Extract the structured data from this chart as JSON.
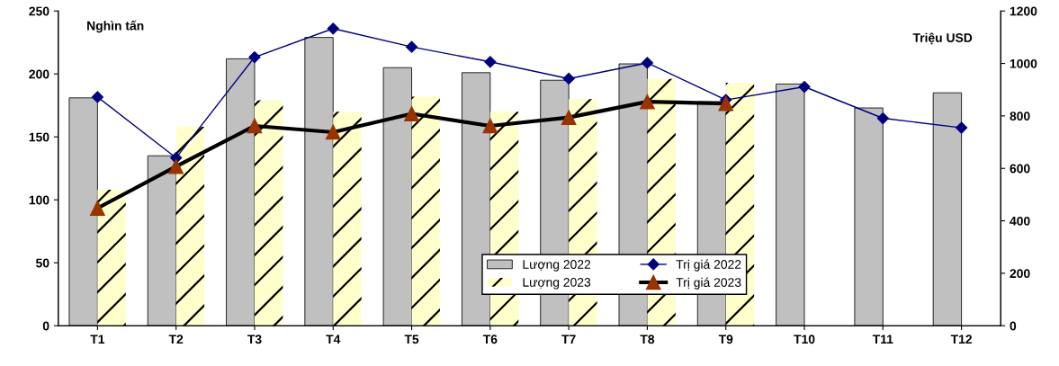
{
  "chart_data": {
    "type": "bar",
    "ylabel": "Nghìn tấn",
    "y2label": "Triệu USD",
    "categories": [
      "T1",
      "T2",
      "T3",
      "T4",
      "T5",
      "T6",
      "T7",
      "T8",
      "T9",
      "T10",
      "T11",
      "T12"
    ],
    "series": [
      {
        "name": "Lượng 2022",
        "color": "#c0c0c0",
        "values": [
          181,
          135,
          212,
          229,
          205,
          201,
          195,
          208,
          178,
          192,
          173,
          185
        ]
      },
      {
        "name": "Lượng 2023",
        "color": "#ffffcc",
        "values": [
          108,
          158,
          179,
          170,
          182,
          170,
          180,
          196,
          193,
          null,
          null,
          null
        ]
      },
      {
        "name": "Trị giá 2022",
        "type": "line",
        "axis": "y2",
        "color": "#000080",
        "marker": "diamond",
        "values": [
          872,
          640,
          1024,
          1133,
          1063,
          1006,
          942,
          1002,
          861,
          911,
          791,
          755
        ]
      },
      {
        "name": "Trị giá 2023",
        "type": "line",
        "axis": "y2",
        "color": "#000000",
        "marker": "triangle",
        "values": [
          448,
          607,
          762,
          738,
          808,
          762,
          794,
          854,
          847,
          null,
          null,
          null
        ]
      }
    ],
    "ylim": [
      0,
      250
    ],
    "yticks": [
      0,
      50,
      100,
      150,
      200,
      250
    ],
    "y2lim": [
      0,
      1200
    ],
    "y2ticks": [
      0,
      200,
      400,
      600,
      800,
      1000,
      1200
    ],
    "grid": false,
    "legend": "bottom"
  }
}
